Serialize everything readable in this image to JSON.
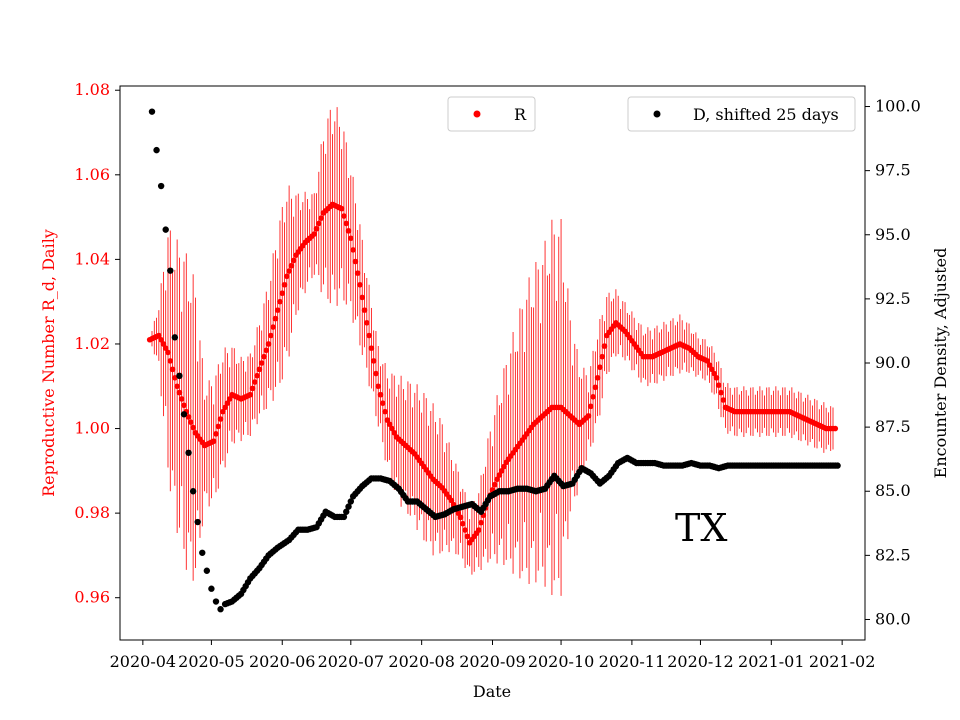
{
  "chart_data": {
    "type": "scatter",
    "xlabel": "Date",
    "ylabel_left": "Reproductive Number R_d, Daily",
    "ylabel_right": "Encounter Density, Adjusted",
    "annotation": "TX",
    "x_ticks": [
      "2020-04",
      "2020-05",
      "2020-06",
      "2020-07",
      "2020-08",
      "2020-09",
      "2020-10",
      "2020-11",
      "2020-12",
      "2021-01",
      "2021-02"
    ],
    "x_range": [
      "2020-03-22",
      "2021-02-11"
    ],
    "y_left": {
      "range": [
        0.95,
        1.081
      ],
      "ticks": [
        "0.96",
        "0.98",
        "1.00",
        "1.02",
        "1.04",
        "1.06",
        "1.08"
      ],
      "color": "#ff0000"
    },
    "y_right": {
      "range": [
        79.2,
        100.8
      ],
      "ticks": [
        "80.0",
        "82.5",
        "85.0",
        "87.5",
        "90.0",
        "92.5",
        "95.0",
        "97.5",
        "100.0"
      ]
    },
    "legend": [
      {
        "label": "R",
        "color": "#ff0000",
        "placement": "upper-center"
      },
      {
        "label": "D, shifted 25 days",
        "color": "#000000",
        "placement": "upper-right"
      }
    ],
    "series": [
      {
        "name": "R",
        "axis": "left",
        "color": "#ff0000",
        "error_bars": true,
        "points": [
          [
            "2020-04-04",
            1.021,
            0.0
          ],
          [
            "2020-04-08",
            1.022,
            0.008
          ],
          [
            "2020-04-12",
            1.018,
            0.03
          ],
          [
            "2020-04-16",
            1.01,
            0.035
          ],
          [
            "2020-04-20",
            1.004,
            0.038
          ],
          [
            "2020-04-24",
            0.999,
            0.036
          ],
          [
            "2020-04-28",
            0.996,
            0.015
          ],
          [
            "2020-05-02",
            0.997,
            0.015
          ],
          [
            "2020-05-06",
            1.004,
            0.015
          ],
          [
            "2020-05-10",
            1.008,
            0.012
          ],
          [
            "2020-05-14",
            1.007,
            0.01
          ],
          [
            "2020-05-18",
            1.008,
            0.01
          ],
          [
            "2020-05-22",
            1.014,
            0.012
          ],
          [
            "2020-05-26",
            1.02,
            0.015
          ],
          [
            "2020-05-30",
            1.028,
            0.02
          ],
          [
            "2020-06-03",
            1.036,
            0.022
          ],
          [
            "2020-06-07",
            1.041,
            0.015
          ],
          [
            "2020-06-11",
            1.044,
            0.012
          ],
          [
            "2020-06-15",
            1.046,
            0.01
          ],
          [
            "2020-06-19",
            1.051,
            0.02
          ],
          [
            "2020-06-23",
            1.053,
            0.025
          ],
          [
            "2020-06-27",
            1.052,
            0.022
          ],
          [
            "2020-07-01",
            1.045,
            0.018
          ],
          [
            "2020-07-05",
            1.034,
            0.015
          ],
          [
            "2020-07-09",
            1.022,
            0.012
          ],
          [
            "2020-07-13",
            1.01,
            0.01
          ],
          [
            "2020-07-17",
            1.002,
            0.012
          ],
          [
            "2020-07-21",
            0.998,
            0.015
          ],
          [
            "2020-07-25",
            0.996,
            0.016
          ],
          [
            "2020-07-29",
            0.994,
            0.017
          ],
          [
            "2020-08-02",
            0.991,
            0.018
          ],
          [
            "2020-08-06",
            0.988,
            0.018
          ],
          [
            "2020-08-10",
            0.986,
            0.016
          ],
          [
            "2020-08-14",
            0.983,
            0.012
          ],
          [
            "2020-08-18",
            0.979,
            0.01
          ],
          [
            "2020-08-22",
            0.973,
            0.008
          ],
          [
            "2020-08-26",
            0.976,
            0.01
          ],
          [
            "2020-08-30",
            0.983,
            0.015
          ],
          [
            "2020-09-03",
            0.988,
            0.02
          ],
          [
            "2020-09-07",
            0.992,
            0.025
          ],
          [
            "2020-09-11",
            0.995,
            0.03
          ],
          [
            "2020-09-15",
            0.998,
            0.035
          ],
          [
            "2020-09-19",
            1.001,
            0.038
          ],
          [
            "2020-09-23",
            1.003,
            0.04
          ],
          [
            "2020-09-27",
            1.005,
            0.045
          ],
          [
            "2020-10-01",
            1.005,
            0.045
          ],
          [
            "2020-10-05",
            1.003,
            0.025
          ],
          [
            "2020-10-09",
            1.001,
            0.015
          ],
          [
            "2020-10-13",
            1.003,
            0.01
          ],
          [
            "2020-10-17",
            1.012,
            0.012
          ],
          [
            "2020-10-21",
            1.022,
            0.01
          ],
          [
            "2020-10-25",
            1.025,
            0.008
          ],
          [
            "2020-10-29",
            1.023,
            0.007
          ],
          [
            "2020-11-02",
            1.02,
            0.007
          ],
          [
            "2020-11-06",
            1.017,
            0.007
          ],
          [
            "2020-11-10",
            1.017,
            0.007
          ],
          [
            "2020-11-14",
            1.018,
            0.007
          ],
          [
            "2020-11-18",
            1.019,
            0.007
          ],
          [
            "2020-11-22",
            1.02,
            0.007
          ],
          [
            "2020-11-26",
            1.019,
            0.006
          ],
          [
            "2020-11-30",
            1.017,
            0.005
          ],
          [
            "2020-12-04",
            1.016,
            0.005
          ],
          [
            "2020-12-08",
            1.012,
            0.006
          ],
          [
            "2020-12-12",
            1.005,
            0.006
          ],
          [
            "2020-12-16",
            1.004,
            0.006
          ],
          [
            "2020-12-20",
            1.004,
            0.006
          ],
          [
            "2020-12-24",
            1.004,
            0.006
          ],
          [
            "2020-12-28",
            1.004,
            0.006
          ],
          [
            "2021-01-01",
            1.004,
            0.006
          ],
          [
            "2021-01-05",
            1.004,
            0.006
          ],
          [
            "2021-01-09",
            1.004,
            0.006
          ],
          [
            "2021-01-13",
            1.003,
            0.006
          ],
          [
            "2021-01-17",
            1.002,
            0.006
          ],
          [
            "2021-01-21",
            1.001,
            0.006
          ],
          [
            "2021-01-25",
            1.0,
            0.006
          ],
          [
            "2021-01-29",
            1.0,
            0.005
          ]
        ]
      },
      {
        "name": "D, shifted 25 days",
        "axis": "right",
        "color": "#000000",
        "points": [
          [
            "2020-04-05",
            99.8
          ],
          [
            "2020-04-07",
            98.3
          ],
          [
            "2020-04-09",
            96.9
          ],
          [
            "2020-04-11",
            95.2
          ],
          [
            "2020-04-13",
            93.6
          ],
          [
            "2020-04-15",
            91.0
          ],
          [
            "2020-04-17",
            89.5
          ],
          [
            "2020-04-19",
            88.0
          ],
          [
            "2020-04-21",
            86.5
          ],
          [
            "2020-04-23",
            85.0
          ],
          [
            "2020-04-25",
            83.8
          ],
          [
            "2020-04-27",
            82.6
          ],
          [
            "2020-04-29",
            81.9
          ],
          [
            "2020-05-01",
            81.2
          ],
          [
            "2020-05-03",
            80.7
          ],
          [
            "2020-05-05",
            80.4
          ],
          [
            "2020-05-07",
            80.6
          ],
          [
            "2020-05-10",
            80.7
          ],
          [
            "2020-05-14",
            81.0
          ],
          [
            "2020-05-18",
            81.6
          ],
          [
            "2020-05-22",
            82.0
          ],
          [
            "2020-05-26",
            82.5
          ],
          [
            "2020-05-30",
            82.8
          ],
          [
            "2020-06-04",
            83.1
          ],
          [
            "2020-06-08",
            83.5
          ],
          [
            "2020-06-12",
            83.5
          ],
          [
            "2020-06-16",
            83.6
          ],
          [
            "2020-06-20",
            84.2
          ],
          [
            "2020-06-24",
            84.0
          ],
          [
            "2020-06-28",
            84.0
          ],
          [
            "2020-07-02",
            84.8
          ],
          [
            "2020-07-06",
            85.2
          ],
          [
            "2020-07-10",
            85.5
          ],
          [
            "2020-07-14",
            85.5
          ],
          [
            "2020-07-18",
            85.4
          ],
          [
            "2020-07-22",
            85.1
          ],
          [
            "2020-07-26",
            84.6
          ],
          [
            "2020-07-30",
            84.6
          ],
          [
            "2020-08-03",
            84.3
          ],
          [
            "2020-08-07",
            84.0
          ],
          [
            "2020-08-11",
            84.1
          ],
          [
            "2020-08-15",
            84.3
          ],
          [
            "2020-08-19",
            84.4
          ],
          [
            "2020-08-23",
            84.5
          ],
          [
            "2020-08-27",
            84.2
          ],
          [
            "2020-08-31",
            84.8
          ],
          [
            "2020-09-04",
            85.0
          ],
          [
            "2020-09-08",
            85.0
          ],
          [
            "2020-09-12",
            85.1
          ],
          [
            "2020-09-16",
            85.1
          ],
          [
            "2020-09-20",
            85.0
          ],
          [
            "2020-09-24",
            85.1
          ],
          [
            "2020-09-28",
            85.6
          ],
          [
            "2020-10-02",
            85.2
          ],
          [
            "2020-10-06",
            85.3
          ],
          [
            "2020-10-10",
            85.9
          ],
          [
            "2020-10-14",
            85.7
          ],
          [
            "2020-10-18",
            85.3
          ],
          [
            "2020-10-22",
            85.6
          ],
          [
            "2020-10-26",
            86.1
          ],
          [
            "2020-10-30",
            86.3
          ],
          [
            "2020-11-03",
            86.1
          ],
          [
            "2020-11-07",
            86.1
          ],
          [
            "2020-11-11",
            86.1
          ],
          [
            "2020-11-15",
            86.0
          ],
          [
            "2020-11-19",
            86.0
          ],
          [
            "2020-11-23",
            86.0
          ],
          [
            "2020-11-27",
            86.1
          ],
          [
            "2020-12-01",
            86.0
          ],
          [
            "2020-12-05",
            86.0
          ],
          [
            "2020-12-09",
            85.9
          ],
          [
            "2020-12-13",
            86.0
          ],
          [
            "2020-12-17",
            86.0
          ],
          [
            "2020-12-21",
            86.0
          ],
          [
            "2020-12-25",
            86.0
          ],
          [
            "2020-12-29",
            86.0
          ],
          [
            "2021-01-02",
            86.0
          ],
          [
            "2021-01-06",
            86.0
          ],
          [
            "2021-01-10",
            86.0
          ],
          [
            "2021-01-14",
            86.0
          ],
          [
            "2021-01-18",
            86.0
          ],
          [
            "2021-01-22",
            86.0
          ],
          [
            "2021-01-26",
            86.0
          ],
          [
            "2021-01-30",
            86.0
          ]
        ]
      }
    ]
  }
}
